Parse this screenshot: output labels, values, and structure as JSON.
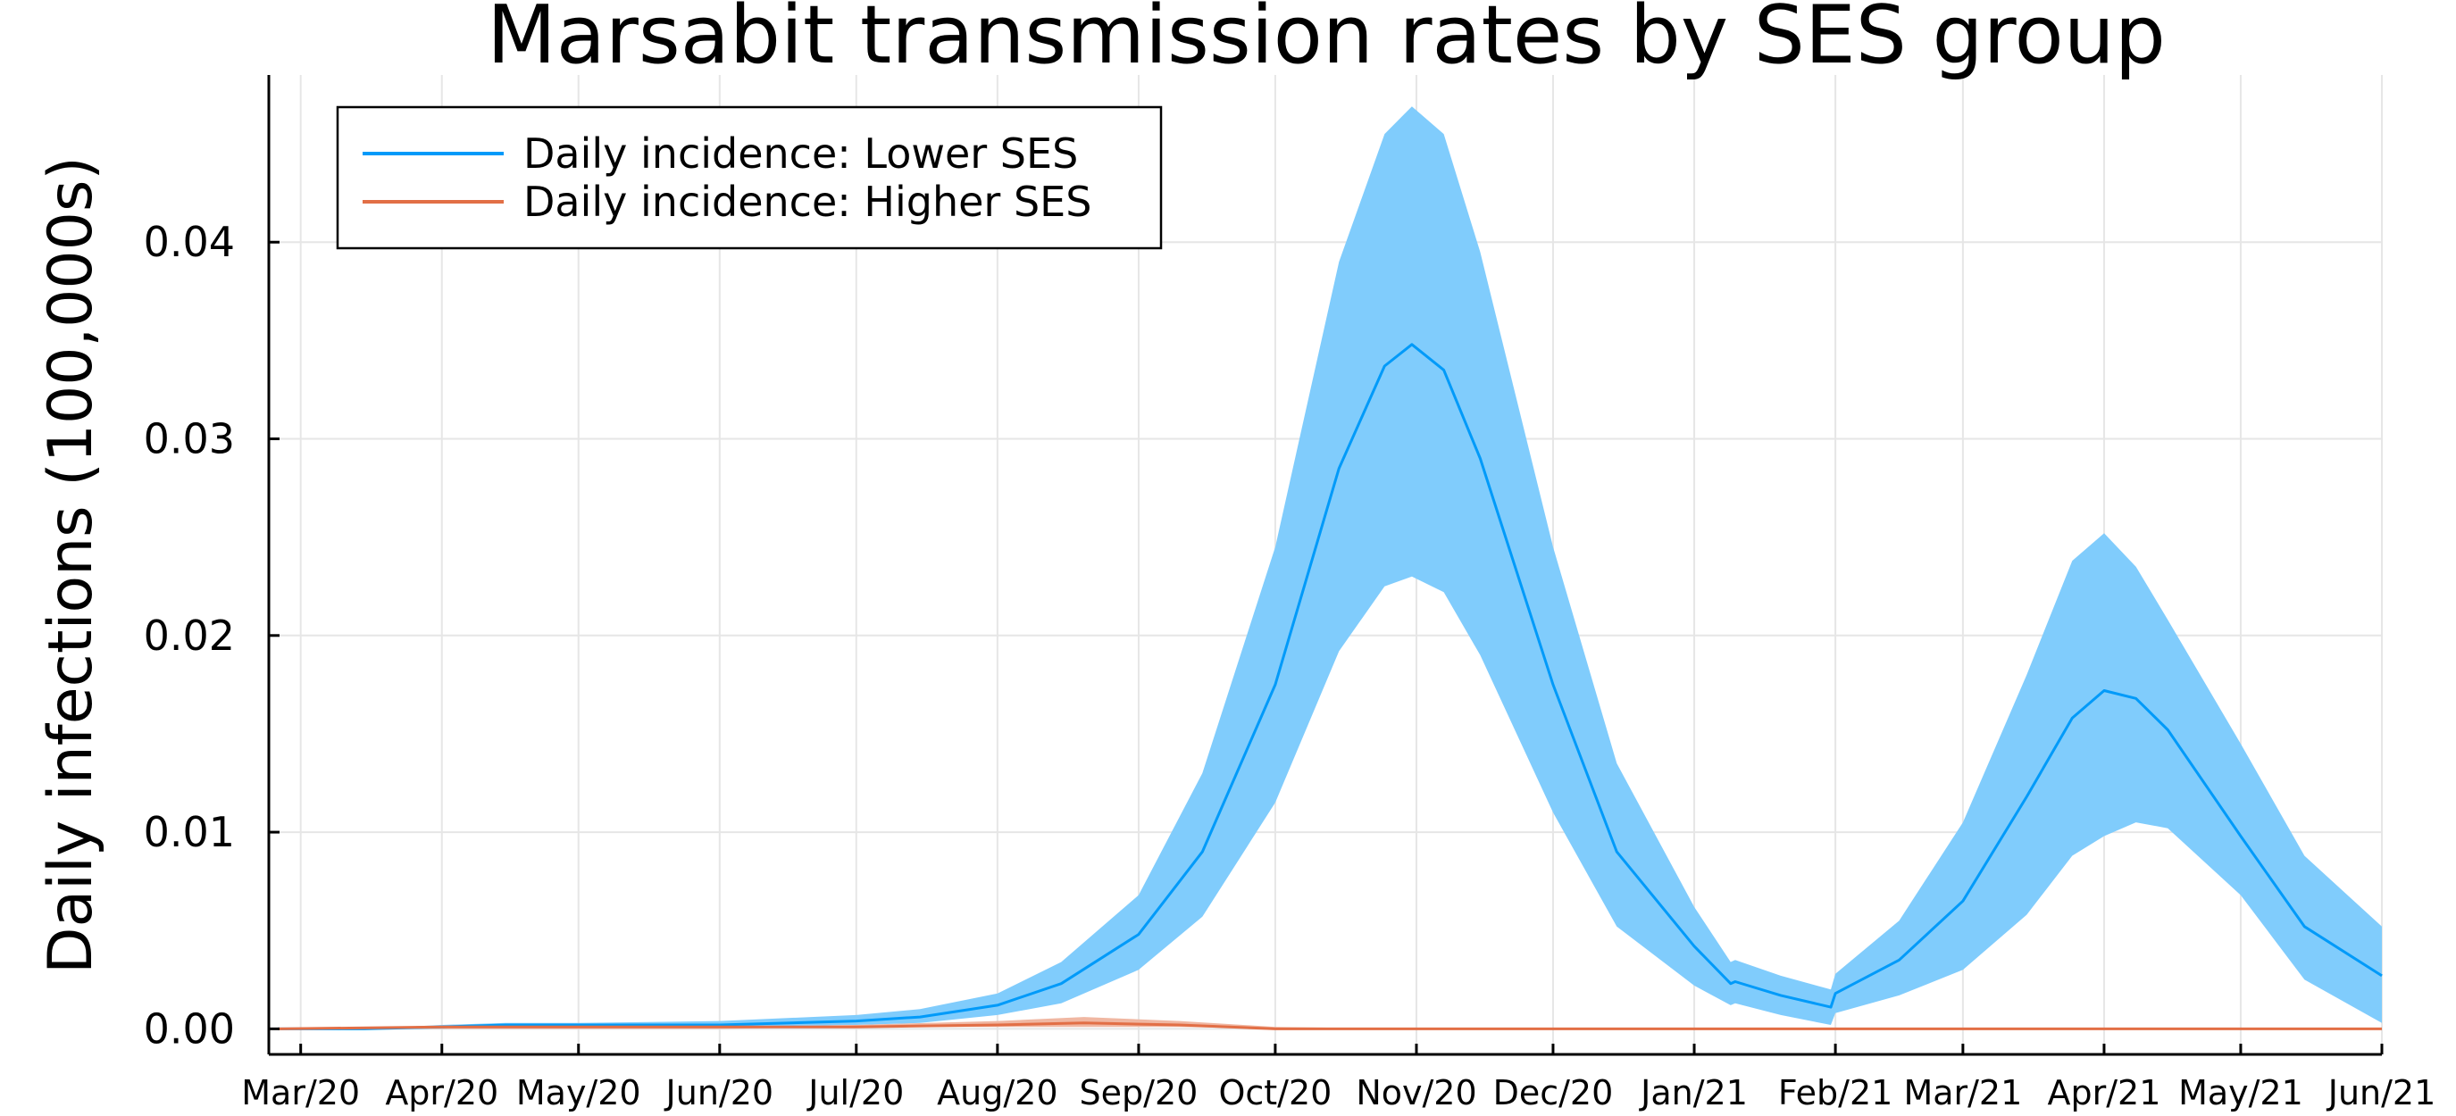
{
  "chart_data": {
    "type": "line",
    "title": "Marsabit transmission rates by SES group",
    "xlabel": "",
    "ylabel": "Daily infections (100,000s)",
    "x_range": [
      "2020-02-23",
      "2021-06-01"
    ],
    "ylim": [
      -0.0013,
      0.0485
    ],
    "x_ticks": [
      {
        "date": "2020-03-01",
        "label": "Mar/20"
      },
      {
        "date": "2020-04-01",
        "label": "Apr/20"
      },
      {
        "date": "2020-05-01",
        "label": "May/20"
      },
      {
        "date": "2020-06-01",
        "label": "Jun/20"
      },
      {
        "date": "2020-07-01",
        "label": "Jul/20"
      },
      {
        "date": "2020-08-01",
        "label": "Aug/20"
      },
      {
        "date": "2020-09-01",
        "label": "Sep/20"
      },
      {
        "date": "2020-10-01",
        "label": "Oct/20"
      },
      {
        "date": "2020-11-01",
        "label": "Nov/20"
      },
      {
        "date": "2020-12-01",
        "label": "Dec/20"
      },
      {
        "date": "2021-01-01",
        "label": "Jan/21"
      },
      {
        "date": "2021-02-01",
        "label": "Feb/21"
      },
      {
        "date": "2021-03-01",
        "label": "Mar/21"
      },
      {
        "date": "2021-04-01",
        "label": "Apr/21"
      },
      {
        "date": "2021-05-01",
        "label": "May/21"
      },
      {
        "date": "2021-06-01",
        "label": "Jun/21"
      }
    ],
    "y_ticks": [
      {
        "value": 0.0,
        "label": "0.00"
      },
      {
        "value": 0.01,
        "label": "0.01"
      },
      {
        "value": 0.02,
        "label": "0.02"
      },
      {
        "value": 0.03,
        "label": "0.03"
      },
      {
        "value": 0.04,
        "label": "0.04"
      }
    ],
    "grid": true,
    "legend_position": "top-left",
    "series": [
      {
        "name": "Daily incidence: Lower SES",
        "color": "#009af9",
        "band_color": "#80ccfc",
        "points": [
          {
            "x": "2020-02-25",
            "y": 0.0,
            "lo": 0.0,
            "hi": 0.0
          },
          {
            "x": "2020-03-15",
            "y": 0.0,
            "lo": 0.0,
            "hi": 0.0
          },
          {
            "x": "2020-04-01",
            "y": 0.0001,
            "lo": 0.0,
            "hi": 0.0002
          },
          {
            "x": "2020-04-15",
            "y": 0.0002,
            "lo": 0.0001,
            "hi": 0.0003
          },
          {
            "x": "2020-05-01",
            "y": 0.0002,
            "lo": 0.0001,
            "hi": 0.0003
          },
          {
            "x": "2020-06-01",
            "y": 0.0002,
            "lo": 0.0001,
            "hi": 0.0004
          },
          {
            "x": "2020-07-01",
            "y": 0.0004,
            "lo": 0.0002,
            "hi": 0.0007
          },
          {
            "x": "2020-07-15",
            "y": 0.0006,
            "lo": 0.0003,
            "hi": 0.001
          },
          {
            "x": "2020-08-01",
            "y": 0.0012,
            "lo": 0.0007,
            "hi": 0.0018
          },
          {
            "x": "2020-08-15",
            "y": 0.0023,
            "lo": 0.0013,
            "hi": 0.0034
          },
          {
            "x": "2020-09-01",
            "y": 0.0048,
            "lo": 0.003,
            "hi": 0.0068
          },
          {
            "x": "2020-09-15",
            "y": 0.009,
            "lo": 0.0057,
            "hi": 0.013
          },
          {
            "x": "2020-10-01",
            "y": 0.0175,
            "lo": 0.0115,
            "hi": 0.0245
          },
          {
            "x": "2020-10-15",
            "y": 0.0285,
            "lo": 0.0192,
            "hi": 0.039
          },
          {
            "x": "2020-10-25",
            "y": 0.0337,
            "lo": 0.0225,
            "hi": 0.0455
          },
          {
            "x": "2020-10-31",
            "y": 0.0348,
            "lo": 0.023,
            "hi": 0.0469
          },
          {
            "x": "2020-11-07",
            "y": 0.0335,
            "lo": 0.0222,
            "hi": 0.0455
          },
          {
            "x": "2020-11-15",
            "y": 0.029,
            "lo": 0.019,
            "hi": 0.0395
          },
          {
            "x": "2020-12-01",
            "y": 0.0175,
            "lo": 0.011,
            "hi": 0.0245
          },
          {
            "x": "2020-12-15",
            "y": 0.009,
            "lo": 0.0052,
            "hi": 0.0135
          },
          {
            "x": "2021-01-01",
            "y": 0.0042,
            "lo": 0.0022,
            "hi": 0.0062
          },
          {
            "x": "2021-01-09",
            "y": 0.0023,
            "lo": 0.0012,
            "hi": 0.0034
          },
          {
            "x": "2021-01-10",
            "y": 0.0024,
            "lo": 0.0013,
            "hi": 0.0035
          },
          {
            "x": "2021-01-20",
            "y": 0.0017,
            "lo": 0.0007,
            "hi": 0.0027
          },
          {
            "x": "2021-01-31",
            "y": 0.0011,
            "lo": 0.0002,
            "hi": 0.002
          },
          {
            "x": "2021-02-01",
            "y": 0.0018,
            "lo": 0.0008,
            "hi": 0.0028
          },
          {
            "x": "2021-02-15",
            "y": 0.0035,
            "lo": 0.0017,
            "hi": 0.0055
          },
          {
            "x": "2021-03-01",
            "y": 0.0065,
            "lo": 0.003,
            "hi": 0.0105
          },
          {
            "x": "2021-03-15",
            "y": 0.0118,
            "lo": 0.0058,
            "hi": 0.018
          },
          {
            "x": "2021-03-25",
            "y": 0.0158,
            "lo": 0.0088,
            "hi": 0.0238
          },
          {
            "x": "2021-04-01",
            "y": 0.0172,
            "lo": 0.0098,
            "hi": 0.0252
          },
          {
            "x": "2021-04-08",
            "y": 0.0168,
            "lo": 0.0105,
            "hi": 0.0235
          },
          {
            "x": "2021-04-15",
            "y": 0.0152,
            "lo": 0.0102,
            "hi": 0.0208
          },
          {
            "x": "2021-05-01",
            "y": 0.0098,
            "lo": 0.0068,
            "hi": 0.0145
          },
          {
            "x": "2021-05-15",
            "y": 0.0052,
            "lo": 0.0025,
            "hi": 0.0088
          },
          {
            "x": "2021-06-01",
            "y": 0.0027,
            "lo": 0.0003,
            "hi": 0.0052
          }
        ]
      },
      {
        "name": "Daily incidence: Higher SES",
        "color": "#e26f46",
        "band_color": "#f0b7a2",
        "points": [
          {
            "x": "2020-02-25",
            "y": 0.0,
            "lo": 0.0,
            "hi": 0.0
          },
          {
            "x": "2020-04-01",
            "y": 0.0001,
            "lo": 0.0,
            "hi": 0.0001
          },
          {
            "x": "2020-05-01",
            "y": 0.0001,
            "lo": 0.0,
            "hi": 0.0001
          },
          {
            "x": "2020-06-01",
            "y": 0.0001,
            "lo": 0.0,
            "hi": 0.0001
          },
          {
            "x": "2020-07-01",
            "y": 0.0001,
            "lo": 0.0001,
            "hi": 0.0002
          },
          {
            "x": "2020-08-01",
            "y": 0.0002,
            "lo": 0.0001,
            "hi": 0.0004
          },
          {
            "x": "2020-08-20",
            "y": 0.0003,
            "lo": 0.0001,
            "hi": 0.0006
          },
          {
            "x": "2020-09-10",
            "y": 0.0002,
            "lo": 0.0001,
            "hi": 0.0004
          },
          {
            "x": "2020-10-01",
            "y": 0.0,
            "lo": 0.0,
            "hi": 0.0001
          },
          {
            "x": "2020-11-01",
            "y": 0.0,
            "lo": 0.0,
            "hi": 0.0
          },
          {
            "x": "2021-06-01",
            "y": 0.0,
            "lo": 0.0,
            "hi": 0.0
          }
        ]
      }
    ]
  }
}
